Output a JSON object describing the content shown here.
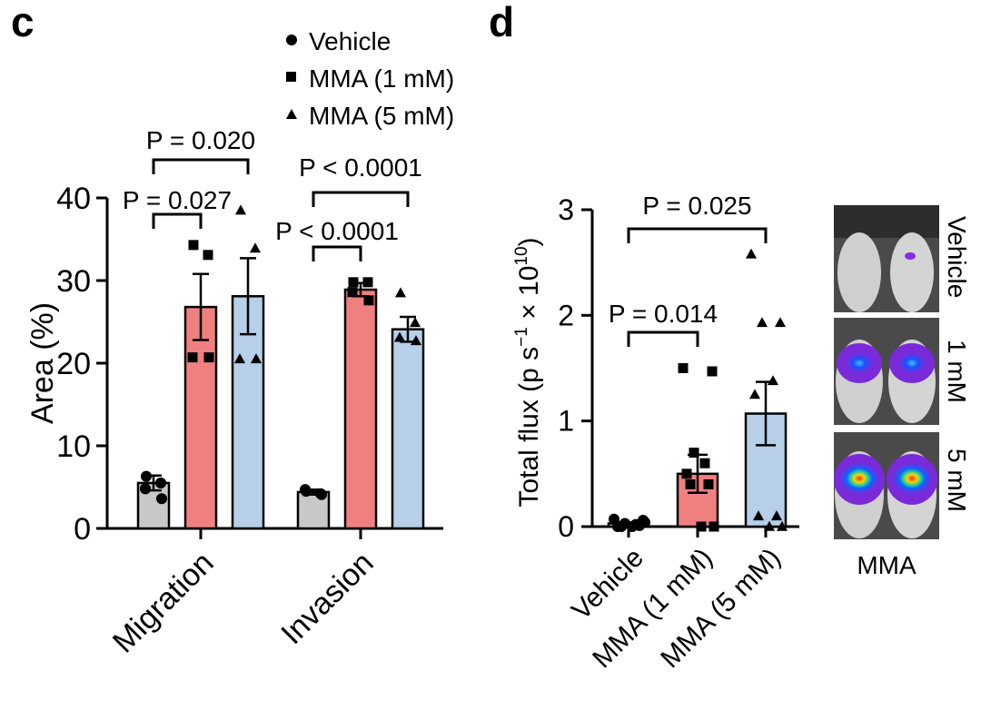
{
  "colors": {
    "vehicle": "#c8c8c8",
    "mma1": "#f08080",
    "mma5": "#b7cfe8",
    "ink": "#000000"
  },
  "panel_c": {
    "letter": "c"
  },
  "panel_d": {
    "letter": "d"
  },
  "legend": [
    {
      "label": "Vehicle",
      "marker": "circle"
    },
    {
      "label": "MMA (1 mM)",
      "marker": "square"
    },
    {
      "label": "MMA (5 mM)",
      "marker": "triangle"
    }
  ],
  "images": {
    "labels": [
      "Vehicle",
      "1 mM",
      "5 mM"
    ],
    "caption": "MMA"
  },
  "chart_data": [
    {
      "type": "bar",
      "title": "",
      "ylabel": "Area (%)",
      "ylim": [
        0,
        40
      ],
      "yticks": [
        0,
        10,
        20,
        30,
        40
      ],
      "categories": [
        "Migration",
        "Invasion"
      ],
      "series": [
        {
          "name": "Vehicle",
          "color": "#c8c8c8",
          "marker": "circle",
          "values": [
            5.5,
            4.4
          ],
          "sem": [
            0.9,
            0.3
          ],
          "points": [
            [
              6.3,
              5.5,
              4.8,
              3.6
            ],
            [
              4.5,
              4.2,
              4.7,
              4.1
            ]
          ]
        },
        {
          "name": "MMA (1 mM)",
          "color": "#f08080",
          "marker": "square",
          "values": [
            26.8,
            28.9
          ],
          "sem": [
            4.0,
            0.8
          ],
          "points": [
            [
              34.3,
              33.1,
              20.7,
              20.7
            ],
            [
              29.8,
              29.8,
              28.6,
              27.6
            ]
          ]
        },
        {
          "name": "MMA (5 mM)",
          "color": "#b7cfe8",
          "marker": "triangle",
          "values": [
            28.1,
            24.1
          ],
          "sem": [
            4.6,
            1.5
          ],
          "points": [
            [
              38.5,
              33.9,
              20.5,
              20.5
            ],
            [
              28.5,
              24.9,
              23.1,
              22.7
            ]
          ]
        }
      ],
      "annotations": [
        {
          "group": 0,
          "from": 0,
          "to": 1,
          "text": "P = 0.027"
        },
        {
          "group": 0,
          "from": 0,
          "to": 2,
          "text": "P = 0.020"
        },
        {
          "group": 1,
          "from": 0,
          "to": 1,
          "text": "P < 0.0001"
        },
        {
          "group": 1,
          "from": 0,
          "to": 2,
          "text": "P < 0.0001"
        }
      ]
    },
    {
      "type": "bar",
      "title": "",
      "ylabel": "Total flux (p s−1 × 1010)",
      "ylim": [
        0,
        3
      ],
      "yticks": [
        0,
        1,
        2,
        3
      ],
      "categories": [
        "Vehicle",
        "MMA (1 mM)",
        "MMA (5 mM)"
      ],
      "series": [
        {
          "name": "Total flux",
          "colors": [
            "#c8c8c8",
            "#f08080",
            "#b7cfe8"
          ],
          "markers": [
            "circle",
            "square",
            "triangle"
          ],
          "values": [
            0.03,
            0.5,
            1.07
          ],
          "sem": [
            0.01,
            0.18,
            0.3
          ],
          "points": [
            [
              0.07,
              0.06,
              0.03,
              0.02,
              0.0,
              0.01,
              0.0,
              0.0,
              0.04
            ],
            [
              1.5,
              1.47,
              0.7,
              0.6,
              0.5,
              0.4,
              0.4,
              0.0,
              0.0
            ],
            [
              2.58,
              1.93,
              1.93,
              1.38,
              1.25,
              0.1,
              0.1,
              0.0,
              0.0
            ]
          ]
        }
      ],
      "annotations": [
        {
          "from": 0,
          "to": 1,
          "text": "P = 0.014"
        },
        {
          "from": 0,
          "to": 2,
          "text": "P = 0.025"
        }
      ]
    }
  ]
}
